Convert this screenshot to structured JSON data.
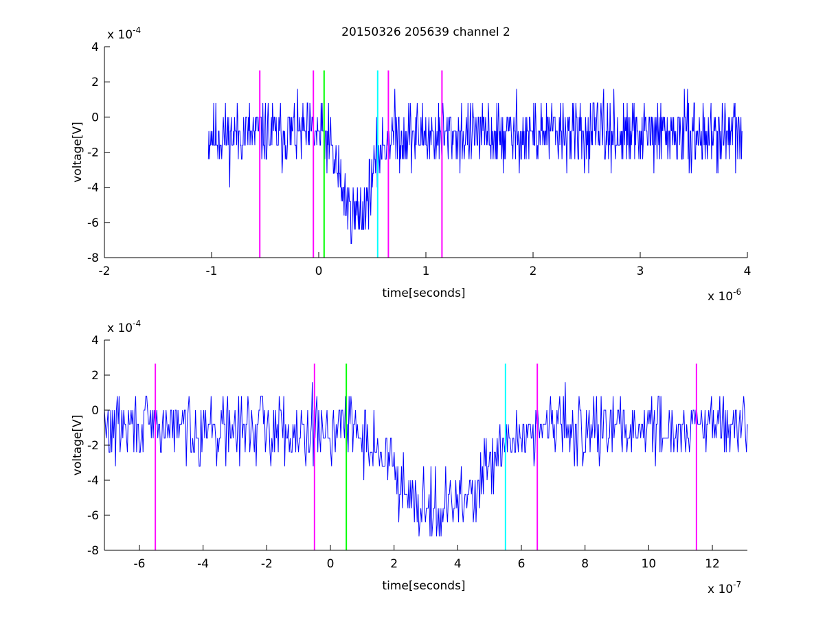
{
  "figure": {
    "title": "20150326 205639 channel 2"
  },
  "chart_data": [
    {
      "type": "line",
      "title": "20150326 205639 channel 2",
      "xlabel": "time[seconds]",
      "ylabel": "voltage[V]",
      "x_exponent_label": "x 10",
      "x_exponent": "-6",
      "y_exponent_label": "x 10",
      "y_exponent": "-4",
      "xlim": [
        -2,
        4
      ],
      "ylim": [
        -8,
        4
      ],
      "xticks": [
        -2,
        -1,
        0,
        1,
        2,
        3,
        4
      ],
      "yticks": [
        -8,
        -6,
        -4,
        -2,
        0,
        2,
        4
      ],
      "xtick_labels": [
        "-2",
        "-1",
        "0",
        "1",
        "2",
        "3",
        "4"
      ],
      "ytick_labels": [
        "-8",
        "-6",
        "-4",
        "-2",
        "0",
        "2",
        "4"
      ],
      "grid": false,
      "series": [
        {
          "role": "signal",
          "color": "#0000ff",
          "x_range": [
            -1.03,
            3.95
          ],
          "baseline": -1.0,
          "dip_center": 0.35,
          "dip_min": -5.6
        }
      ],
      "markers": [
        {
          "x": -0.55,
          "color": "#ff00ff"
        },
        {
          "x": -0.05,
          "color": "#ff00ff"
        },
        {
          "x": 0.05,
          "color": "#00ff00"
        },
        {
          "x": 0.55,
          "color": "#00ffff"
        },
        {
          "x": 0.65,
          "color": "#ff00ff"
        },
        {
          "x": 1.15,
          "color": "#ff00ff"
        }
      ],
      "marker_ylim": [
        -8,
        2.65
      ]
    },
    {
      "type": "line",
      "xlabel": "time[seconds]",
      "ylabel": "voltage[V]",
      "x_exponent_label": "x 10",
      "x_exponent": "-7",
      "y_exponent_label": "x 10",
      "y_exponent": "-4",
      "xlim": [
        -7.1,
        13.1
      ],
      "ylim": [
        -8,
        4
      ],
      "xticks": [
        -6,
        -4,
        -2,
        0,
        2,
        4,
        6,
        8,
        10,
        12
      ],
      "yticks": [
        -8,
        -6,
        -4,
        -2,
        0,
        2,
        4
      ],
      "xtick_labels": [
        "-6",
        "-4",
        "-2",
        "0",
        "2",
        "4",
        "6",
        "8",
        "10",
        "12"
      ],
      "ytick_labels": [
        "-8",
        "-6",
        "-4",
        "-2",
        "0",
        "2",
        "4"
      ],
      "grid": false,
      "series": [
        {
          "role": "signal",
          "color": "#0000ff",
          "x_range": [
            -7.1,
            13.1
          ],
          "baseline": -1.0,
          "dip_center": 3.5,
          "dip_min": -5.6
        }
      ],
      "markers": [
        {
          "x": -5.5,
          "color": "#ff00ff"
        },
        {
          "x": -0.5,
          "color": "#ff00ff"
        },
        {
          "x": 0.5,
          "color": "#00ff00"
        },
        {
          "x": 5.5,
          "color": "#00ffff"
        },
        {
          "x": 6.5,
          "color": "#ff00ff"
        },
        {
          "x": 11.5,
          "color": "#ff00ff"
        }
      ],
      "marker_ylim": [
        -8,
        2.65
      ]
    }
  ]
}
